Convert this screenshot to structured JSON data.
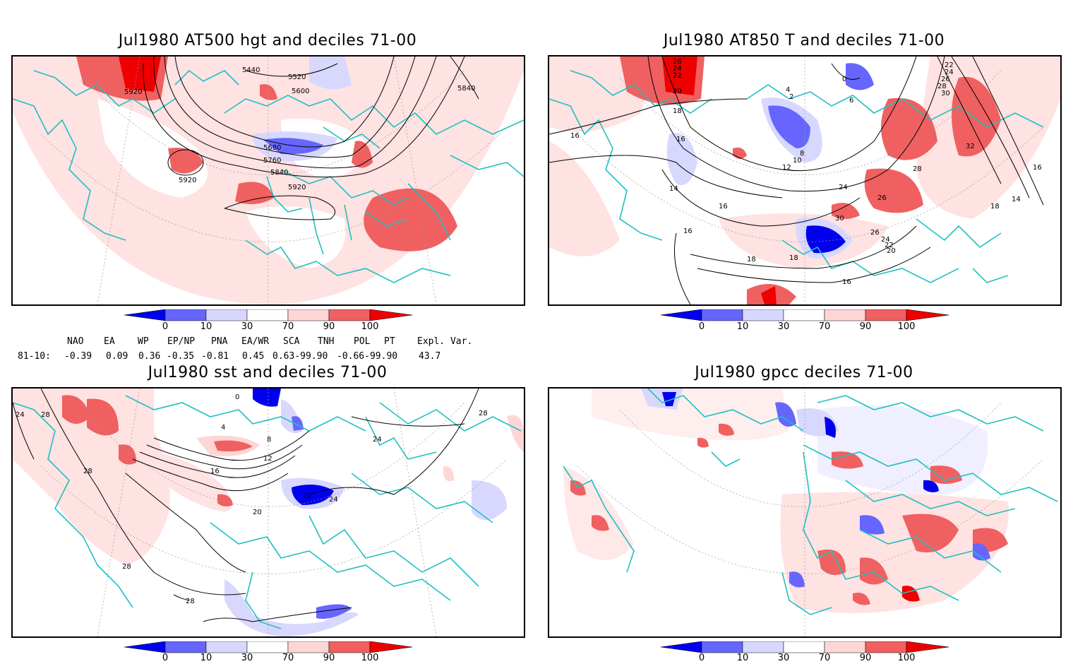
{
  "panels": [
    {
      "title": "Jul1980 AT500 hgt and deciles 71-00",
      "contour_labels": [
        "5440",
        "5520",
        "5600",
        "5680",
        "5760",
        "5840",
        "5920",
        "5920",
        "5920",
        "5840"
      ]
    },
    {
      "title": "Jul1980 AT850 T and deciles 71-00",
      "contour_labels": [
        "26",
        "24",
        "22",
        "20",
        "18",
        "16",
        "16",
        "14",
        "12",
        "10",
        "8",
        "2",
        "0",
        "4",
        "6",
        "16",
        "16",
        "18",
        "22",
        "24",
        "26",
        "28",
        "30",
        "32",
        "24",
        "26",
        "28",
        "16",
        "18",
        "14",
        "30",
        "26",
        "24",
        "22",
        "20",
        "18",
        "16"
      ]
    },
    {
      "title": "Jul1980 sst and deciles 71-00",
      "contour_labels": [
        "24",
        "28",
        "28",
        "28",
        "28",
        "16",
        "12",
        "8",
        "4",
        "0",
        "20",
        "24",
        "20",
        "24",
        "28"
      ]
    },
    {
      "title": "Jul1980 gpcc deciles 71-00",
      "contour_labels": []
    }
  ],
  "colorbar": {
    "ticks": [
      "0",
      "10",
      "30",
      "70",
      "90",
      "100"
    ],
    "colors": [
      "#0000ee",
      "#6666ff",
      "#d8d8ff",
      "#ffffff",
      "#ffd6d6",
      "#f06060",
      "#ee0000"
    ]
  },
  "indices": {
    "header": [
      "NAO",
      "EA",
      "WP",
      "EP/NP",
      "PNA",
      "EA/WR",
      "SCA",
      "TNH",
      "POL",
      "PT",
      "Expl. Var."
    ],
    "row_label": "81-10:",
    "values": [
      "-0.39",
      "0.09",
      "0.36",
      "-0.35",
      "-0.81",
      "0.45",
      "0.63-99.90",
      "-0.66-99.90",
      "43.7"
    ]
  },
  "colors": {
    "coast": "#20c0c0",
    "land_bg": "#ffe6e6",
    "contour": "#000000"
  }
}
